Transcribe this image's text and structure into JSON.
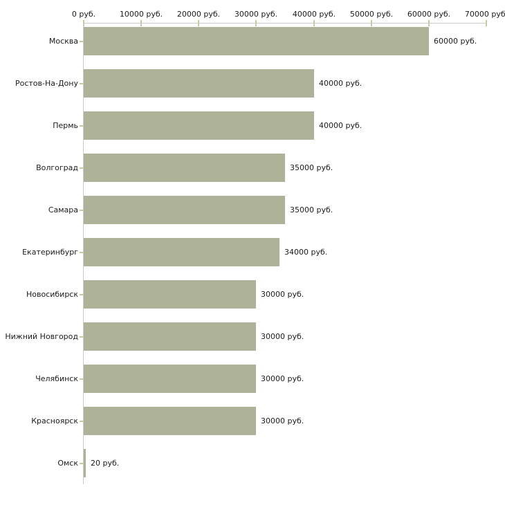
{
  "chart_data": {
    "type": "bar",
    "orientation": "horizontal",
    "title": "",
    "xlabel": "",
    "ylabel": "",
    "unit": "руб.",
    "categories": [
      "Москва",
      "Ростов-На-Дону",
      "Пермь",
      "Волгоград",
      "Самара",
      "Екатеринбург",
      "Новосибирск",
      "Нижний Новгород",
      "Челябинск",
      "Красноярск",
      "Омск"
    ],
    "values": [
      60000,
      40000,
      40000,
      35000,
      35000,
      34000,
      30000,
      30000,
      30000,
      30000,
      20
    ],
    "value_labels": [
      "60000 руб.",
      "40000 руб.",
      "40000 руб.",
      "35000 руб.",
      "35000 руб.",
      "34000 руб.",
      "30000 руб.",
      "30000 руб.",
      "30000 руб.",
      "30000 руб.",
      "20 руб."
    ],
    "x_axis": {
      "position": "top",
      "range": [
        0,
        70000
      ],
      "ticks": [
        0,
        10000,
        20000,
        30000,
        40000,
        50000,
        60000,
        70000
      ],
      "tick_labels": [
        "0 руб.",
        "10000 руб.",
        "20000 руб.",
        "30000 руб.",
        "40000 руб.",
        "50000 руб.",
        "60000 руб.",
        "70000 руб."
      ]
    },
    "grid": false,
    "legend": false,
    "value_label_position": "right-of-bar",
    "colors": {
      "bar": "#adb299",
      "axis_line": "#c9c9c9",
      "tick_mark": "#c7c7a4",
      "text": "#1a1a1a",
      "background": "#ffffff"
    }
  }
}
